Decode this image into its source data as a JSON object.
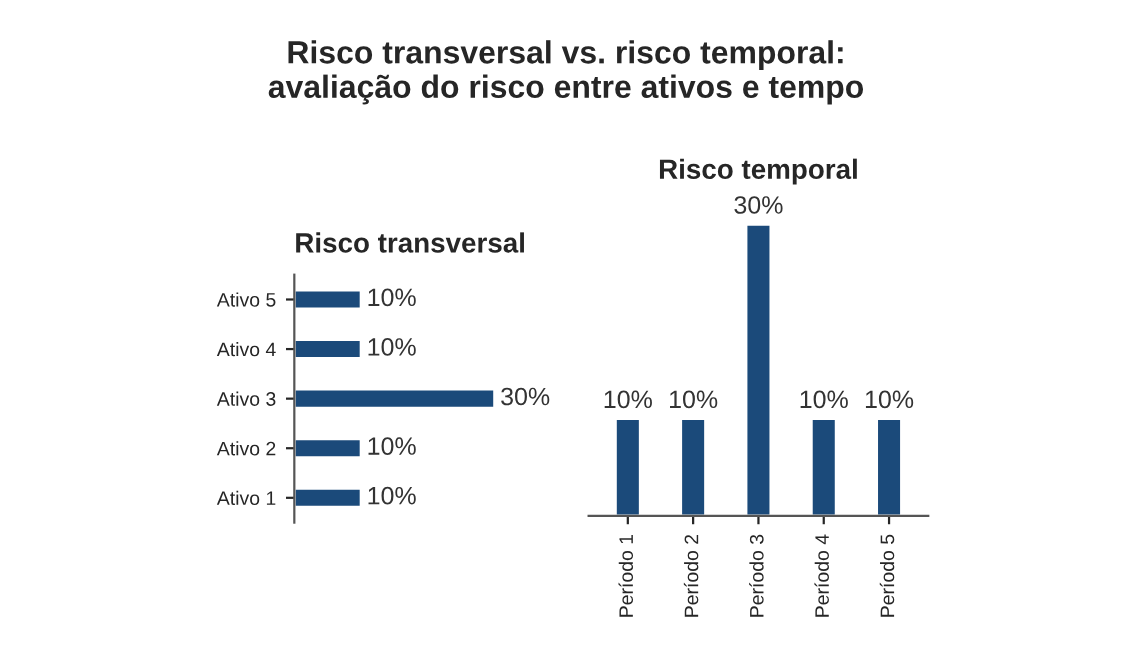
{
  "chart_data": [
    {
      "type": "bar",
      "orientation": "horizontal",
      "title": "Risco transversal",
      "categories": [
        "Ativo 5",
        "Ativo 4",
        "Ativo 3",
        "Ativo 2",
        "Ativo 1"
      ],
      "values": [
        10,
        10,
        30,
        10,
        10
      ],
      "value_labels": [
        "10%",
        "10%",
        "30%",
        "10%",
        "10%"
      ],
      "color": "#1b4a7a",
      "tick_labels": "y",
      "annotations": [
        "Risco transversal vs. risco temporal:\navaliação do risco entre ativos e tempo"
      ]
    },
    {
      "type": "bar",
      "title": "Risco temporal",
      "categories": [
        "Período 1",
        "Período 2",
        "Período 3",
        "Período 4",
        "Período 5"
      ],
      "values": [
        10,
        10,
        30,
        10,
        10
      ],
      "value_labels": [
        "10%",
        "10%",
        "30%",
        "10%",
        "10%"
      ],
      "color": "#1b4a7a",
      "tick_labels": "x"
    }
  ]
}
